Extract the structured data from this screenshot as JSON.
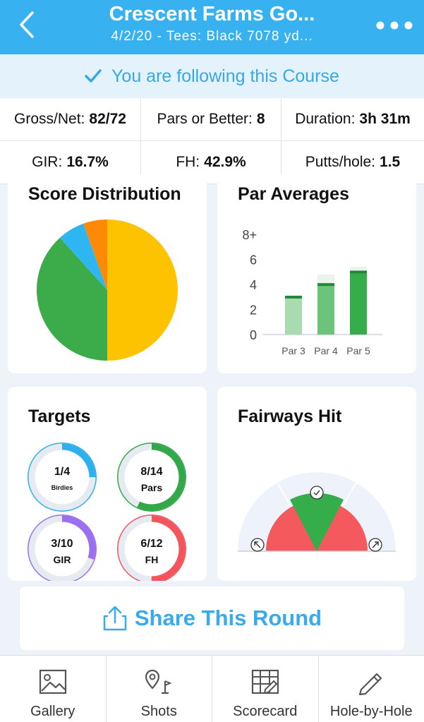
{
  "header": {
    "title": "Crescent Farms Go...",
    "subtitle": "4/2/20 - Tees: Black 7078 yd...",
    "back_icon": "chevron-left-icon",
    "more_icon": "more-dots-icon",
    "background": "#38b1f1"
  },
  "follow_banner": {
    "text": "You are following this Course",
    "icon": "checkmark-icon",
    "color": "#38a7e6"
  },
  "stats": {
    "row1": [
      {
        "label": "Gross/Net:",
        "value": "82/72"
      },
      {
        "label": "Pars or Better:",
        "value": "8"
      },
      {
        "label": "Duration:",
        "value": "3h 31m"
      }
    ],
    "row2": [
      {
        "label": "GIR:",
        "value": "16.7%"
      },
      {
        "label": "FH:",
        "value": "42.9%"
      },
      {
        "label": "Putts/hole:",
        "value": "1.5"
      }
    ]
  },
  "score_distribution": {
    "title": "Score Distribution",
    "slices": [
      {
        "share": 0.5,
        "color": "#fec300"
      },
      {
        "share": 0.383,
        "color": "#3cab4a"
      },
      {
        "share": 0.062,
        "color": "#2eb6f3"
      },
      {
        "share": 0.055,
        "color": "#fd8a07"
      }
    ]
  },
  "par_averages": {
    "title": "Par Averages",
    "chart_data": {
      "type": "bar",
      "categories": [
        "Par 3",
        "Par 4",
        "Par 5"
      ],
      "values": [
        3.1,
        4.1,
        5.1
      ],
      "ref_values": [
        3,
        4.8,
        5.4
      ],
      "ylim": [
        0,
        8
      ],
      "y_ticks": [
        "0",
        "2",
        "4",
        "6",
        "8+"
      ],
      "colors": [
        "#a9dbb0",
        "#6cc37a",
        "#35ad4a"
      ],
      "cap_color": "#218a36"
    }
  },
  "targets": {
    "title": "Targets",
    "items": [
      {
        "value": "1/4",
        "label": "Birdies",
        "fraction": 0.25,
        "color": "#2eb0ee"
      },
      {
        "value": "8/14",
        "label": "Pars",
        "fraction": 0.571,
        "color": "#33a84a"
      },
      {
        "value": "3/10",
        "label": "GIR",
        "fraction": 0.3,
        "color": "#9b6ff0"
      },
      {
        "value": "6/12",
        "label": "FH",
        "fraction": 0.5,
        "color": "#f4545c"
      }
    ]
  },
  "fairways": {
    "title": "Fairways Hit",
    "left_icon": "arrow-up-left-icon",
    "center_icon": "checkmark-icon",
    "right_icon": "arrow-up-right-icon",
    "hit_color": "#35ad4a",
    "miss_color": "#f4595d",
    "hit_fraction": 0.429
  },
  "share": {
    "label": "Share This Round",
    "icon": "share-icon"
  },
  "nav": [
    {
      "label": "Gallery",
      "icon": "gallery-icon"
    },
    {
      "label": "Shots",
      "icon": "shots-icon"
    },
    {
      "label": "Scorecard",
      "icon": "scorecard-icon"
    },
    {
      "label": "Hole-by-Hole",
      "icon": "pencil-icon"
    }
  ]
}
